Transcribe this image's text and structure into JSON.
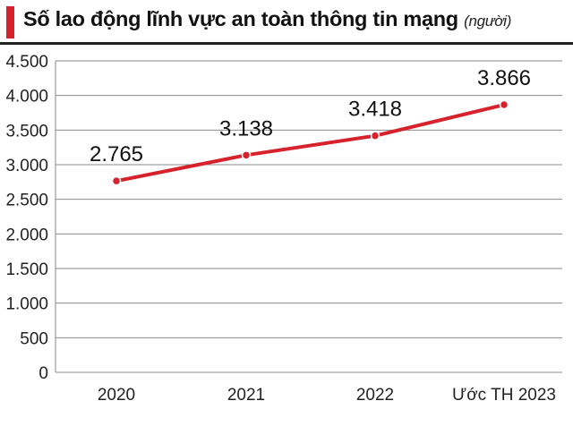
{
  "header": {
    "title": "Số lao động lĩnh vực an toàn thông tin mạng",
    "unit": "(người)"
  },
  "colors": {
    "accent": "#d7212b",
    "line": "#d7212b",
    "grid": "#8a8a8a",
    "text": "#222222"
  },
  "chart_data": {
    "type": "line",
    "title": "Số lao động lĩnh vực an toàn thông tin mạng",
    "unit": "(người)",
    "categories": [
      "2020",
      "2021",
      "2022",
      "Ước TH 2023"
    ],
    "series": [
      {
        "values": [
          2765,
          3138,
          3418,
          3866
        ]
      }
    ],
    "data_labels": [
      "2.765",
      "3.138",
      "3.418",
      "3.866"
    ],
    "y_ticks": [
      0,
      500,
      1000,
      1500,
      2000,
      2500,
      3000,
      3500,
      4000,
      4500
    ],
    "y_tick_labels": [
      "0",
      "500",
      "1.000",
      "1.500",
      "2.000",
      "2.500",
      "3.000",
      "3.500",
      "4.000",
      "4.500"
    ],
    "ylim": [
      0,
      4500
    ],
    "grid": true,
    "xlabel": "",
    "ylabel": ""
  }
}
